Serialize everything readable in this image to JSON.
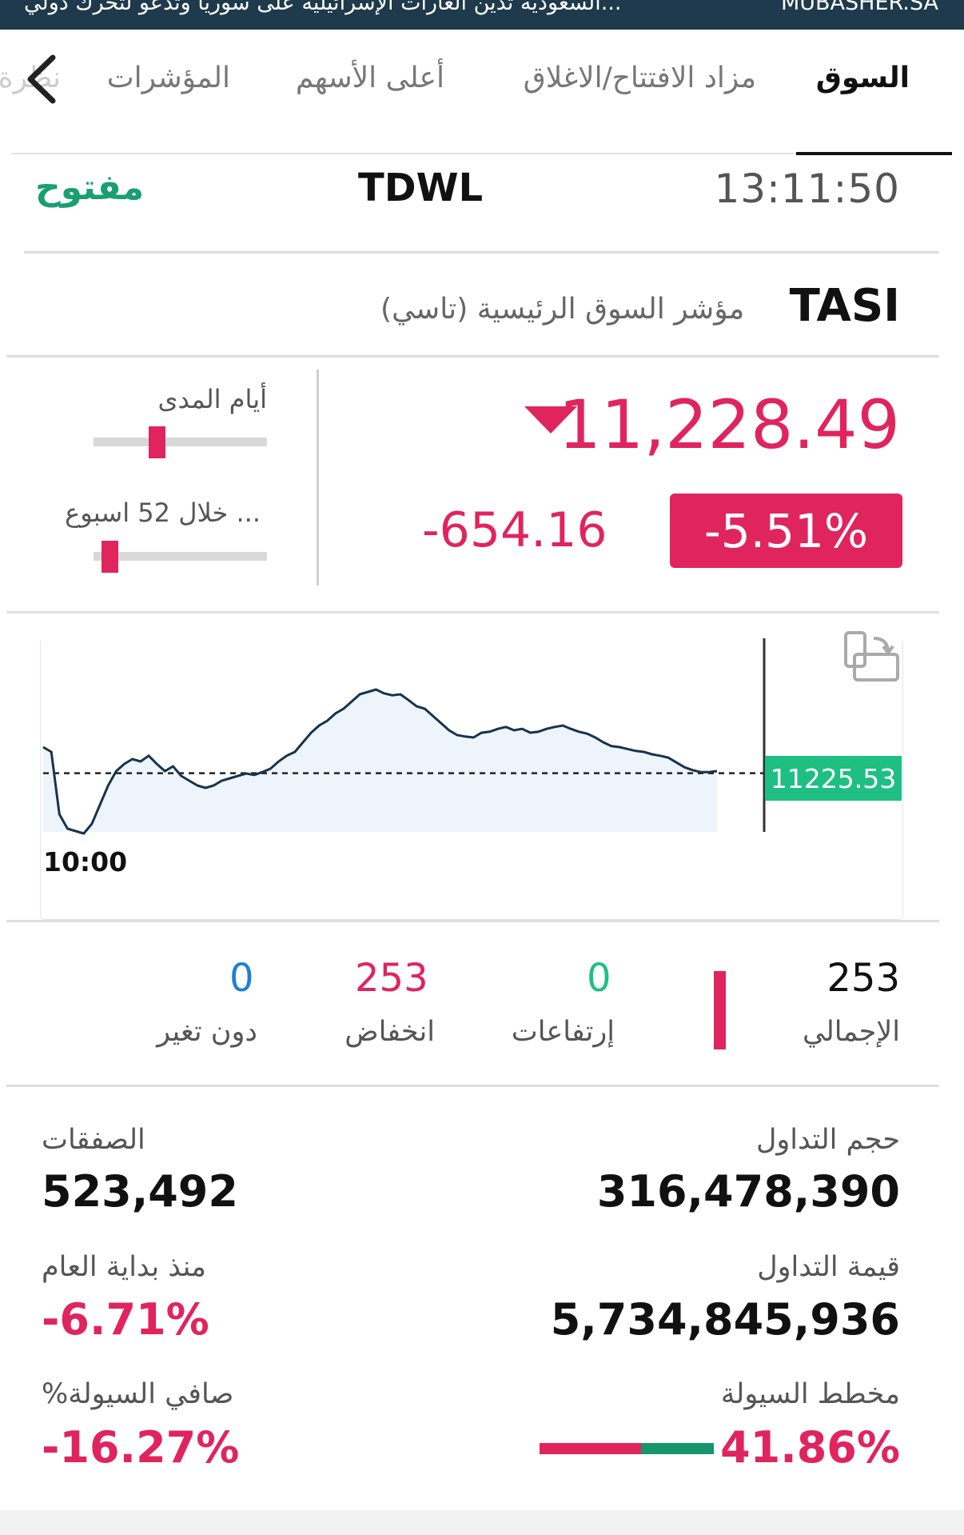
{
  "ticker": {
    "source": "MUBASHER.SA",
    "headline": "...السعودية تدين الغارات الإسرائيلية على سوريا وتدعو لتحرك دولي"
  },
  "tabs": [
    {
      "label": "السوق",
      "active": true
    },
    {
      "label": "مزاد الافتتاح/الاغلاق",
      "active": false
    },
    {
      "label": "أعلى الأسهم",
      "active": false
    },
    {
      "label": "المؤشرات",
      "active": false
    },
    {
      "label": "نظرة",
      "active": false
    }
  ],
  "status": {
    "time": "13:11:50",
    "exchange": "TDWL",
    "market_state": "مفتوح"
  },
  "index": {
    "code": "TASI",
    "name": "مؤشر السوق الرئيسية (تاسي)",
    "price": "11,228.49",
    "change": "-654.16",
    "change_pct": "-5.51%",
    "direction": "down"
  },
  "ranges": {
    "day_label": "أيام المدى",
    "day_position": 0.35,
    "week52_label": "... خلال 52 اسبوع",
    "week52_position": 0.05
  },
  "chart_data": {
    "type": "line",
    "x_start_label": "10:00",
    "last_value_label": "11225.53",
    "reference_value": 11225.53,
    "series": [
      {
        "values": [
          11280,
          11270,
          11140,
          11110,
          11105,
          11100,
          11120,
          11160,
          11200,
          11230,
          11245,
          11255,
          11250,
          11262,
          11245,
          11230,
          11240,
          11220,
          11210,
          11200,
          11195,
          11200,
          11210,
          11215,
          11220,
          11225,
          11222,
          11228,
          11235,
          11250,
          11262,
          11270,
          11290,
          11310,
          11325,
          11335,
          11350,
          11360,
          11375,
          11390,
          11395,
          11400,
          11392,
          11388,
          11390,
          11378,
          11365,
          11360,
          11345,
          11330,
          11315,
          11305,
          11302,
          11300,
          11310,
          11312,
          11318,
          11322,
          11315,
          11318,
          11310,
          11312,
          11318,
          11322,
          11325,
          11318,
          11312,
          11308,
          11300,
          11290,
          11282,
          11280,
          11276,
          11272,
          11270,
          11265,
          11262,
          11258,
          11248,
          11238,
          11232,
          11228,
          11228,
          11230
        ]
      }
    ]
  },
  "breadth": {
    "total": {
      "value": "253",
      "label": "الإجمالي"
    },
    "advancing": {
      "value": "0",
      "label": "إرتفاعات"
    },
    "declining": {
      "value": "253",
      "label": "انخفاض"
    },
    "unchanged": {
      "value": "0",
      "label": "دون تغير"
    }
  },
  "stats": {
    "volume": {
      "label": "حجم التداول",
      "value": "316,478,390"
    },
    "deals": {
      "label": "الصفقات",
      "value": "523,492"
    },
    "turnover": {
      "label": "قيمة التداول",
      "value": "5,734,845,936"
    },
    "ytd": {
      "label": "منذ بداية العام",
      "value": "-6.71%"
    },
    "liquidity_chart": {
      "label": "مخطط السيولة",
      "value": "41.86%",
      "inflow_share": 0.4186
    },
    "net_liquidity": {
      "label": "صافي السيولة%",
      "value": "-16.27%"
    }
  },
  "colors": {
    "negative": "#e0245e",
    "positive": "#1fbf84",
    "open_status": "#1a9e72",
    "unchanged": "#1e7fd6"
  }
}
